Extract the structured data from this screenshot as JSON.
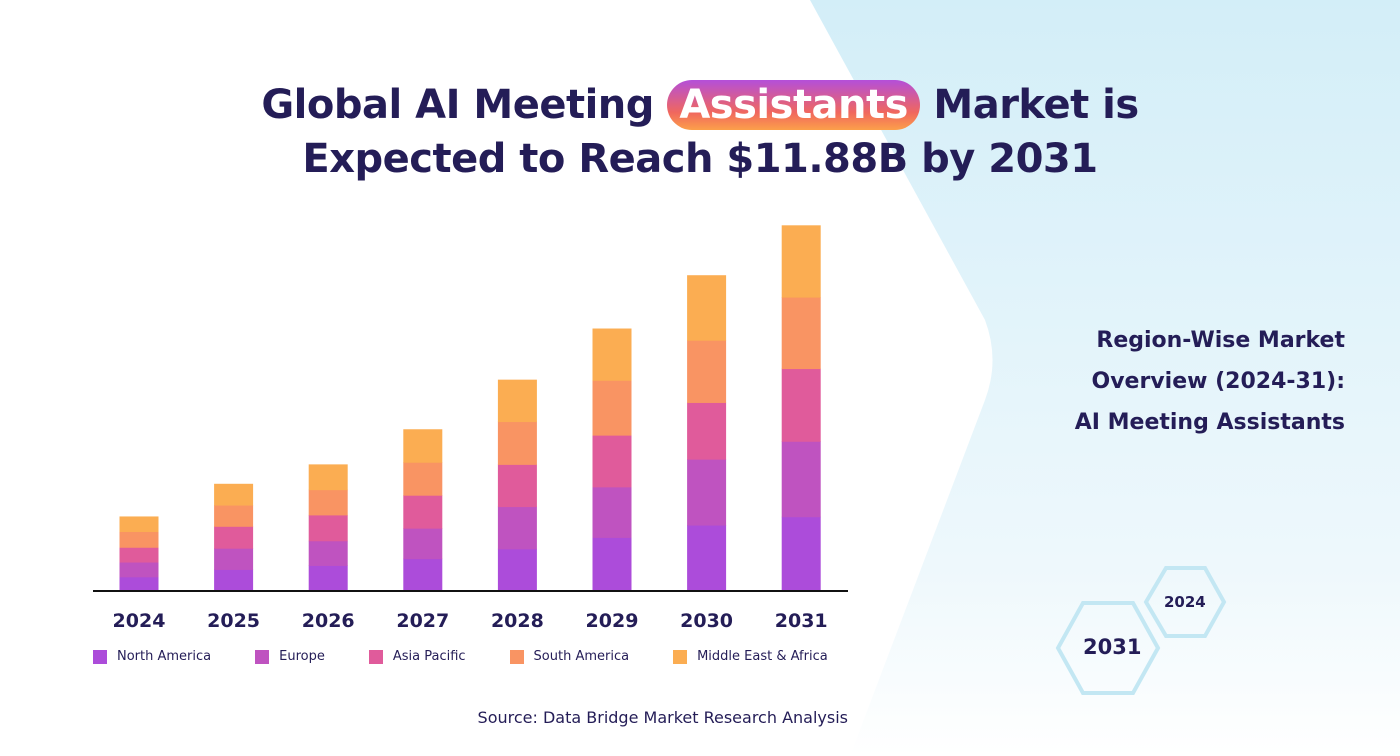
{
  "title": {
    "line1_before": "Global AI Meeting",
    "line1_highlight": "Assistants",
    "line1_after": "Market is",
    "line2": "Expected to Reach $11.88B by 2031"
  },
  "side_text": {
    "line1": "Region-Wise Market",
    "line2": "Overview (2024-31):",
    "line3": "AI Meeting Assistants"
  },
  "hexagons": {
    "small": "2024",
    "large": "2031"
  },
  "source": "Source: Data Bridge Market Research Analysis",
  "colors": {
    "title": "#241d57",
    "bg_accent": "#d6eff8",
    "hex_stroke": "#c3e7f3"
  },
  "chart_data": {
    "type": "bar",
    "stacked": true,
    "categories": [
      "2024",
      "2025",
      "2026",
      "2027",
      "2028",
      "2029",
      "2030",
      "2031"
    ],
    "unit": "USD billion (approx., scaled to $11.88B total in 2031; no axis printed)",
    "ylim": [
      0,
      12
    ],
    "grid": false,
    "legend_position": "bottom",
    "series": [
      {
        "name": "North America",
        "color": "#ac4cda",
        "values": [
          0.46,
          0.7,
          0.83,
          1.05,
          1.37,
          1.74,
          2.14,
          2.41
        ]
      },
      {
        "name": "Europe",
        "color": "#bf53c0",
        "values": [
          0.48,
          0.69,
          0.8,
          0.99,
          1.37,
          1.64,
          2.14,
          2.45
        ]
      },
      {
        "name": "Asia Pacific",
        "color": "#e05b9b",
        "values": [
          0.48,
          0.71,
          0.84,
          1.07,
          1.37,
          1.68,
          1.84,
          2.36
        ]
      },
      {
        "name": "South America",
        "color": "#f99463",
        "values": [
          0.51,
          0.69,
          0.82,
          1.07,
          1.39,
          1.78,
          2.02,
          2.32
        ]
      },
      {
        "name": "Middle East & Africa",
        "color": "#fbad52",
        "values": [
          0.49,
          0.69,
          0.82,
          1.07,
          1.36,
          1.68,
          2.11,
          2.33
        ]
      }
    ]
  }
}
